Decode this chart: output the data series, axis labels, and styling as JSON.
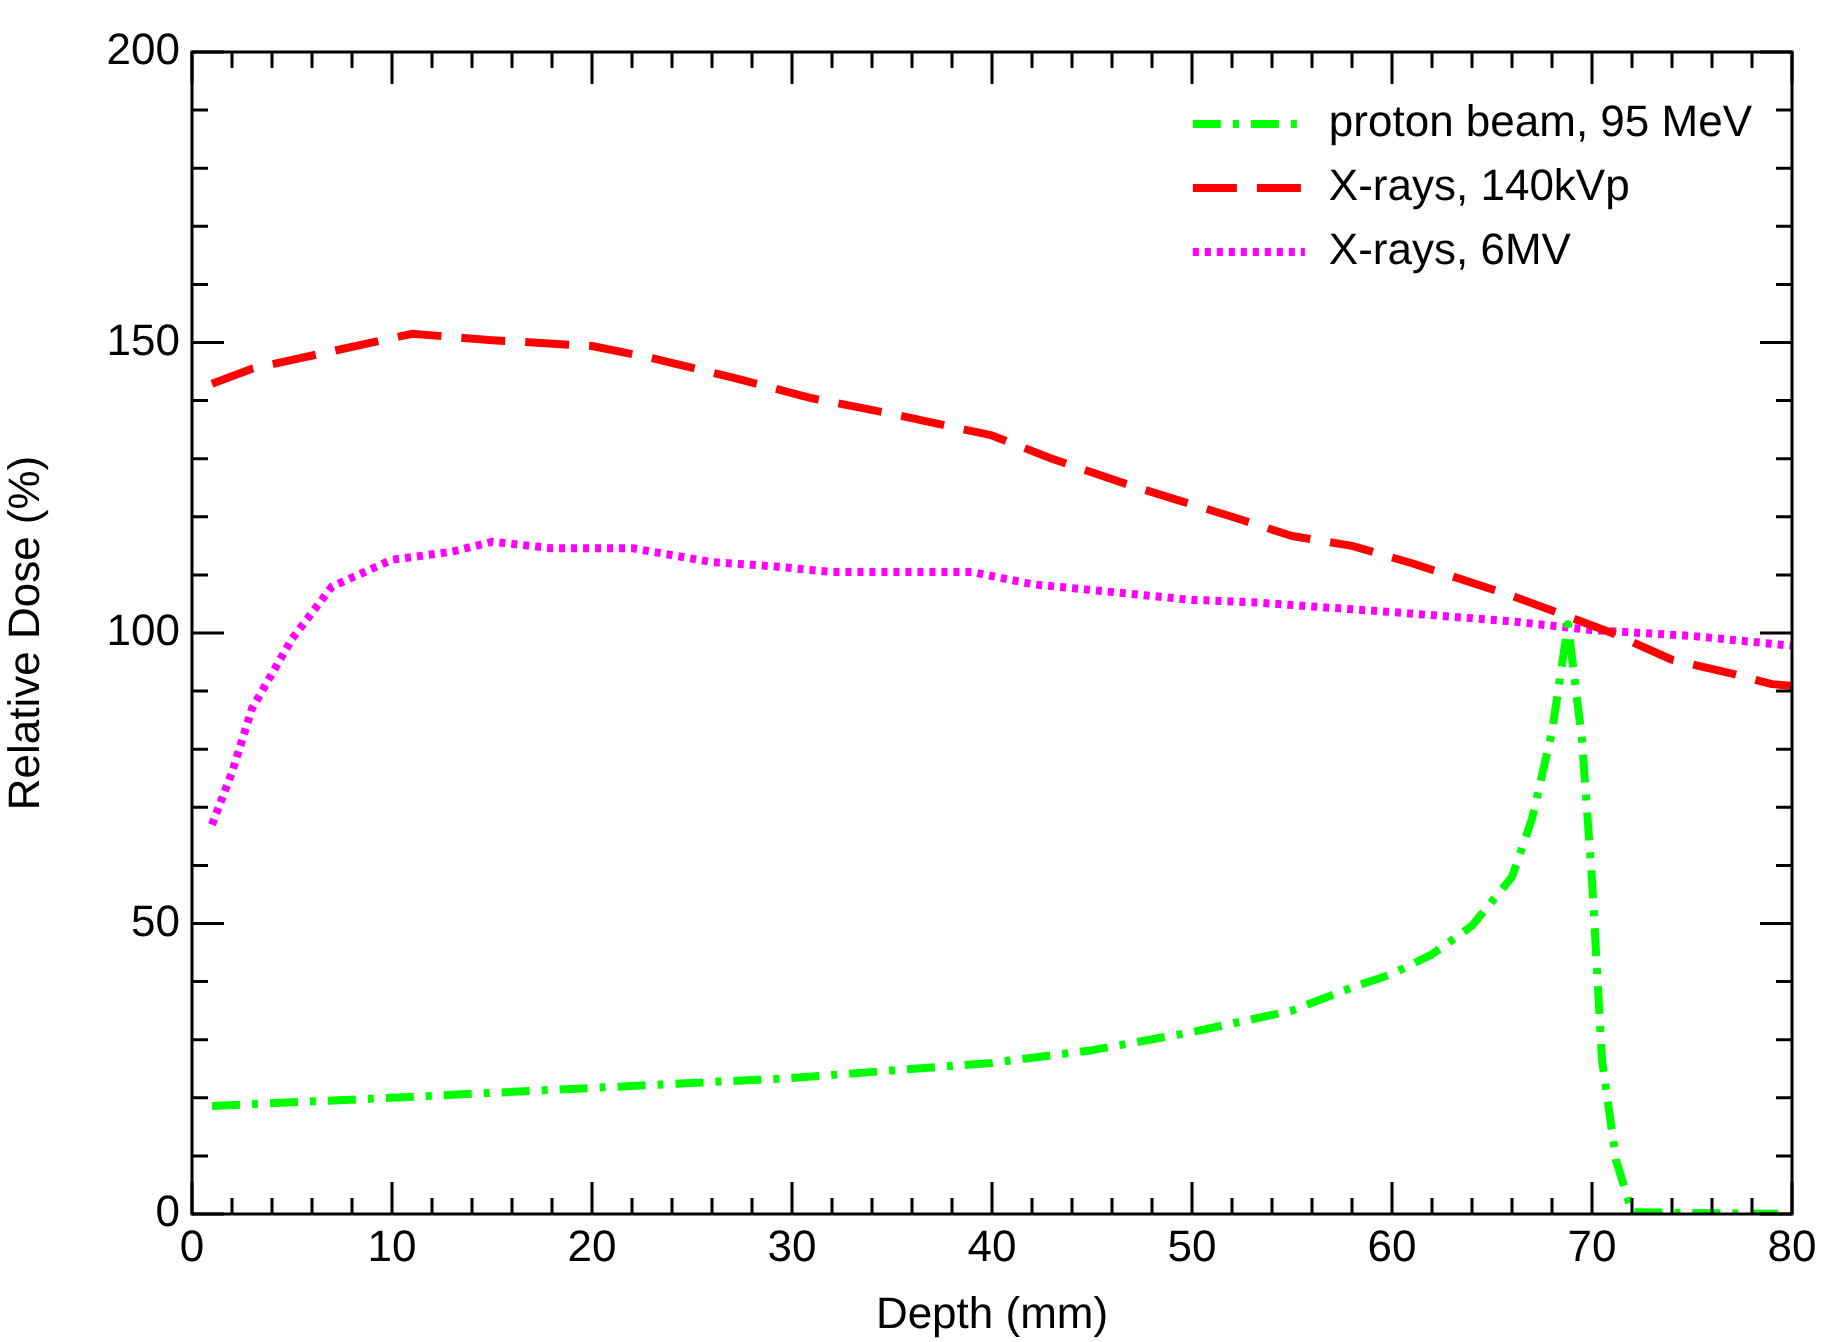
{
  "chart_data": {
    "type": "line",
    "xlabel": "Depth (mm)",
    "ylabel": "Relative Dose (%)",
    "xlim": [
      0,
      80
    ],
    "xticks": [
      0,
      {
        "value": 2,
        "label": null
      },
      {
        "value": 4,
        "label": null
      },
      {
        "value": 6,
        "label": null
      },
      {
        "value": 8,
        "label": null
      },
      10,
      {
        "value": 12,
        "label": null
      },
      {
        "value": 14,
        "label": null
      },
      {
        "value": 16,
        "label": null
      },
      {
        "value": 18,
        "label": null
      },
      20,
      {
        "value": 22,
        "label": null
      },
      {
        "value": 24,
        "label": null
      },
      {
        "value": 26,
        "label": null
      },
      {
        "value": 28,
        "label": null
      },
      30,
      {
        "value": 32,
        "label": null
      },
      {
        "value": 34,
        "label": null
      },
      {
        "value": 36,
        "label": null
      },
      {
        "value": 38,
        "label": null
      },
      40,
      {
        "value": 42,
        "label": null
      },
      {
        "value": 44,
        "label": null
      },
      {
        "value": 46,
        "label": null
      },
      {
        "value": 48,
        "label": null
      },
      50,
      {
        "value": 52,
        "label": null
      },
      {
        "value": 54,
        "label": null
      },
      {
        "value": 56,
        "label": null
      },
      {
        "value": 58,
        "label": null
      },
      60,
      {
        "value": 62,
        "label": null
      },
      {
        "value": 64,
        "label": null
      },
      {
        "value": 66,
        "label": null
      },
      {
        "value": 68,
        "label": null
      },
      70,
      {
        "value": 72,
        "label": null
      },
      {
        "value": 74,
        "label": null
      },
      {
        "value": 76,
        "label": null
      },
      {
        "value": 78,
        "label": null
      },
      80
    ],
    "ylim": [
      0,
      200
    ],
    "yticks": [
      0,
      {
        "value": 10,
        "label": null
      },
      {
        "value": 20,
        "label": null
      },
      {
        "value": 30,
        "label": null
      },
      {
        "value": 40,
        "label": null
      },
      50,
      {
        "value": 60,
        "label": null
      },
      {
        "value": 70,
        "label": null
      },
      {
        "value": 80,
        "label": null
      },
      {
        "value": 90,
        "label": null
      },
      100,
      {
        "value": 110,
        "label": null
      },
      {
        "value": 120,
        "label": null
      },
      {
        "value": 130,
        "label": null
      },
      {
        "value": 140,
        "label": null
      },
      150,
      {
        "value": 160,
        "label": null
      },
      {
        "value": 170,
        "label": null
      },
      {
        "value": 180,
        "label": null
      },
      {
        "value": 190,
        "label": null
      },
      200
    ],
    "grid": false,
    "legend": "top right",
    "marker": "none",
    "series": [
      {
        "name": "proton beam, 95 MeV",
        "color": "#00ff00",
        "line_style": "dashdot",
        "x": [
          1,
          10,
          20,
          30,
          40,
          45,
          50,
          55,
          58,
          60,
          62,
          64,
          66,
          67,
          68,
          68.8,
          69.5,
          70,
          70.5,
          71.2,
          72,
          80
        ],
        "values": [
          18.6,
          20,
          21.7,
          23.4,
          26,
          28.2,
          31.3,
          35,
          39,
          41.3,
          44.7,
          49.6,
          58,
          68,
          83,
          101.5,
          81.6,
          57.5,
          26.5,
          9.3,
          0.3,
          0
        ]
      },
      {
        "name": "X-rays, 140kVp",
        "color": "#ff0000",
        "line_style": "dashed",
        "x": [
          1,
          3,
          7,
          11,
          15,
          20,
          23,
          27,
          31,
          35,
          40,
          43,
          47,
          52,
          55,
          58,
          61,
          66,
          69,
          71,
          74,
          77,
          79,
          80
        ],
        "values": [
          142.9,
          145.5,
          148.5,
          151.5,
          150.4,
          149.4,
          147.3,
          144,
          140.4,
          137.7,
          134,
          130,
          125.3,
          120,
          116.7,
          115,
          112,
          106.4,
          102.6,
          100,
          95.4,
          93,
          91.2,
          90.9
        ]
      },
      {
        "name": "X-rays, 6MV",
        "color": "#ff00ff",
        "line_style": "dotted",
        "x": [
          1,
          2,
          3,
          5,
          7,
          10,
          13,
          15,
          18,
          22,
          26,
          29,
          32,
          39,
          42,
          50,
          53,
          60,
          66,
          70,
          75,
          80
        ],
        "values": [
          67,
          76,
          87,
          99,
          108,
          112.6,
          114,
          115.7,
          114.6,
          114.6,
          112.2,
          111.5,
          110.5,
          110.5,
          108.4,
          105.7,
          105.3,
          103.6,
          102,
          100.5,
          99.5,
          97.8
        ]
      }
    ]
  }
}
